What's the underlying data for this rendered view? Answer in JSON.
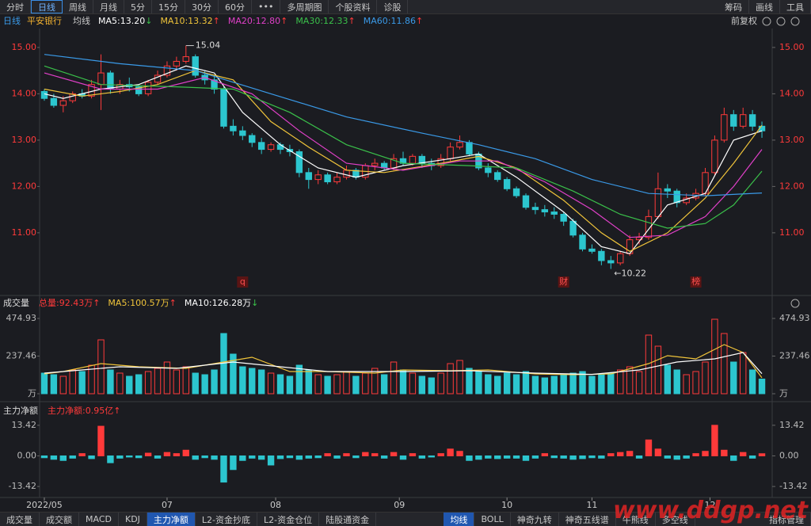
{
  "toolbar": {
    "tabs": [
      "分时",
      "日线",
      "周线",
      "月线",
      "5分",
      "15分",
      "30分",
      "60分",
      "•••",
      "多周期图",
      "个股资料",
      "诊股"
    ],
    "active": 1,
    "right": [
      "筹码",
      "画线",
      "工具"
    ]
  },
  "info_bar": {
    "period": "日线",
    "stock": "平安银行",
    "ma_label": "均线",
    "adjust": "前复权"
  },
  "chart_data": [
    {
      "type": "candlestick",
      "up_color": "#ff3a3a",
      "down_color": "#2cc6cf",
      "xlim": [
        -0.5,
        76.5
      ],
      "ylim": [
        9.75,
        15.34
      ],
      "yticks": [
        {
          "value": 15,
          "label": "15.00"
        },
        {
          "value": 14,
          "label": "14.00"
        },
        {
          "value": 13,
          "label": "13.00"
        },
        {
          "value": 12,
          "label": "12.00"
        },
        {
          "value": 11,
          "label": "11.00"
        }
      ],
      "ohlc": [
        [
          14.05,
          14.1,
          13.85,
          13.9
        ],
        [
          13.9,
          14.0,
          13.7,
          13.75
        ],
        [
          13.75,
          13.95,
          13.6,
          13.85
        ],
        [
          13.85,
          14.05,
          13.8,
          14.0
        ],
        [
          14.0,
          14.1,
          13.9,
          13.95
        ],
        [
          13.95,
          14.3,
          13.9,
          14.2
        ],
        [
          14.2,
          14.85,
          13.65,
          14.45
        ],
        [
          14.45,
          14.5,
          14.0,
          14.1
        ],
        [
          14.1,
          14.3,
          14.0,
          14.2
        ],
        [
          14.2,
          14.35,
          14.05,
          14.15
        ],
        [
          14.15,
          14.2,
          13.95,
          14.0
        ],
        [
          14.0,
          14.3,
          13.95,
          14.25
        ],
        [
          14.25,
          14.5,
          14.2,
          14.4
        ],
        [
          14.4,
          14.7,
          14.35,
          14.6
        ],
        [
          14.6,
          14.8,
          14.5,
          14.7
        ],
        [
          14.7,
          15.04,
          14.65,
          14.8
        ],
        [
          14.8,
          14.85,
          14.35,
          14.4
        ],
        [
          14.4,
          14.5,
          14.2,
          14.3
        ],
        [
          14.3,
          14.4,
          14.0,
          14.1
        ],
        [
          14.1,
          14.15,
          13.25,
          13.3
        ],
        [
          13.3,
          13.45,
          13.1,
          13.2
        ],
        [
          13.2,
          13.3,
          13.0,
          13.1
        ],
        [
          13.1,
          13.15,
          12.85,
          12.95
        ],
        [
          12.95,
          13.05,
          12.7,
          12.8
        ],
        [
          12.8,
          12.95,
          12.75,
          12.9
        ],
        [
          12.9,
          12.95,
          12.7,
          12.8
        ],
        [
          12.8,
          12.9,
          12.65,
          12.75
        ],
        [
          12.75,
          12.8,
          12.2,
          12.3
        ],
        [
          12.3,
          12.4,
          11.95,
          12.15
        ],
        [
          12.15,
          12.35,
          12.05,
          12.25
        ],
        [
          12.25,
          12.3,
          12.05,
          12.1
        ],
        [
          12.1,
          12.3,
          12.05,
          12.2
        ],
        [
          12.2,
          12.45,
          12.15,
          12.35
        ],
        [
          12.35,
          12.4,
          12.15,
          12.2
        ],
        [
          12.2,
          12.5,
          12.15,
          12.45
        ],
        [
          12.45,
          12.6,
          12.35,
          12.5
        ],
        [
          12.5,
          12.55,
          12.35,
          12.4
        ],
        [
          12.4,
          12.7,
          12.35,
          12.6
        ],
        [
          12.6,
          12.75,
          12.45,
          12.5
        ],
        [
          12.5,
          12.7,
          12.45,
          12.65
        ],
        [
          12.65,
          12.7,
          12.4,
          12.5
        ],
        [
          12.5,
          12.6,
          12.35,
          12.45
        ],
        [
          12.45,
          12.7,
          12.4,
          12.6
        ],
        [
          12.6,
          12.95,
          12.55,
          12.85
        ],
        [
          12.85,
          13.1,
          12.8,
          12.95
        ],
        [
          12.95,
          13.0,
          12.65,
          12.7
        ],
        [
          12.7,
          12.75,
          12.35,
          12.4
        ],
        [
          12.4,
          12.5,
          12.2,
          12.3
        ],
        [
          12.3,
          12.35,
          12.1,
          12.15
        ],
        [
          12.15,
          12.2,
          11.9,
          11.95
        ],
        [
          11.95,
          12.0,
          11.75,
          11.8
        ],
        [
          11.8,
          11.85,
          11.5,
          11.55
        ],
        [
          11.55,
          11.65,
          11.4,
          11.5
        ],
        [
          11.5,
          11.6,
          11.35,
          11.45
        ],
        [
          11.45,
          11.55,
          11.3,
          11.4
        ],
        [
          11.4,
          11.45,
          11.15,
          11.25
        ],
        [
          11.25,
          11.3,
          10.9,
          10.95
        ],
        [
          10.95,
          11.0,
          10.6,
          10.65
        ],
        [
          10.65,
          10.75,
          10.55,
          10.6
        ],
        [
          10.6,
          10.65,
          10.3,
          10.4
        ],
        [
          10.4,
          10.5,
          10.22,
          10.35
        ],
        [
          10.35,
          10.6,
          10.3,
          10.55
        ],
        [
          10.55,
          10.95,
          10.5,
          10.85
        ],
        [
          10.85,
          11.0,
          10.75,
          10.9
        ],
        [
          10.9,
          11.5,
          10.85,
          11.35
        ],
        [
          11.35,
          12.3,
          11.3,
          11.95
        ],
        [
          11.95,
          12.05,
          11.75,
          11.9
        ],
        [
          11.9,
          11.95,
          11.55,
          11.65
        ],
        [
          11.65,
          11.85,
          11.6,
          11.75
        ],
        [
          11.75,
          11.95,
          11.7,
          11.85
        ],
        [
          11.85,
          12.4,
          11.8,
          12.3
        ],
        [
          12.3,
          13.1,
          12.25,
          13.0
        ],
        [
          13.0,
          13.7,
          12.95,
          13.55
        ],
        [
          13.55,
          13.65,
          13.2,
          13.3
        ],
        [
          13.3,
          13.7,
          13.25,
          13.55
        ],
        [
          13.55,
          13.65,
          13.2,
          13.3
        ],
        [
          13.3,
          13.4,
          13.05,
          13.2
        ]
      ],
      "series": [
        {
          "name": "MA5:13.20",
          "arrow": "↓",
          "arrow_color": "#3ac04a",
          "color": "#ffffff",
          "x": [
            0,
            2,
            6,
            10,
            15,
            18,
            21,
            25,
            29,
            33,
            38,
            43,
            46,
            50,
            55,
            59,
            62,
            66,
            70,
            73,
            76
          ],
          "values": [
            14.0,
            13.9,
            14.1,
            14.2,
            14.6,
            14.45,
            13.6,
            12.9,
            12.4,
            12.2,
            12.45,
            12.6,
            12.7,
            12.2,
            11.45,
            10.7,
            10.55,
            11.6,
            11.85,
            13.0,
            13.2
          ]
        },
        {
          "name": "MA10:13.32",
          "arrow": "↑",
          "arrow_color": "#ff3a3a",
          "color": "#f0c43a",
          "x": [
            0,
            4,
            8,
            12,
            16,
            20,
            24,
            28,
            32,
            36,
            42,
            46,
            50,
            55,
            59,
            62,
            66,
            70,
            73,
            76
          ],
          "values": [
            14.1,
            13.95,
            14.05,
            14.2,
            14.5,
            14.3,
            13.4,
            12.85,
            12.35,
            12.3,
            12.5,
            12.65,
            12.4,
            11.7,
            11.0,
            10.6,
            11.0,
            11.75,
            12.5,
            13.32
          ]
        },
        {
          "name": "MA20:12.80",
          "arrow": "↑",
          "arrow_color": "#ff3a3a",
          "color": "#e040c8",
          "x": [
            0,
            6,
            12,
            17,
            22,
            27,
            32,
            38,
            44,
            48,
            53,
            58,
            62,
            66,
            70,
            73,
            76
          ],
          "values": [
            14.45,
            14.1,
            14.1,
            14.35,
            14.0,
            13.2,
            12.5,
            12.35,
            12.55,
            12.55,
            12.1,
            11.5,
            10.9,
            10.95,
            11.35,
            12.0,
            12.8
          ]
        },
        {
          "name": "MA30:12.33",
          "arrow": "↑",
          "arrow_color": "#ff3a3a",
          "color": "#3ac04a",
          "x": [
            0,
            6,
            14,
            20,
            26,
            32,
            38,
            45,
            50,
            56,
            61,
            66,
            70,
            73,
            76
          ],
          "values": [
            14.6,
            14.2,
            14.15,
            14.1,
            13.6,
            12.9,
            12.5,
            12.45,
            12.4,
            11.9,
            11.4,
            11.1,
            11.2,
            11.6,
            12.33
          ]
        },
        {
          "name": "MA60:11.86",
          "arrow": "↑",
          "arrow_color": "#ff3a3a",
          "color": "#3a9ae8",
          "x": [
            0,
            8,
            16,
            24,
            32,
            40,
            46,
            52,
            58,
            64,
            70,
            76
          ],
          "values": [
            14.85,
            14.65,
            14.5,
            14.0,
            13.5,
            13.15,
            12.9,
            12.6,
            12.15,
            11.85,
            11.8,
            11.86
          ]
        }
      ],
      "max_label": {
        "value": 15.04,
        "x": 15
      },
      "min_label": {
        "value": 10.22,
        "label": "←10.22",
        "x": 60
      },
      "events": [
        {
          "label": "q",
          "x": 21
        },
        {
          "label": "财",
          "x": 55
        },
        {
          "label": "榜",
          "x": 69
        }
      ]
    },
    {
      "type": "bar",
      "title": "成交量",
      "color_by": "candle",
      "up_color": "#ff3a3a",
      "down_color": "#2cc6cf",
      "xlim": [
        -0.5,
        76.5
      ],
      "ylim": [
        0,
        515
      ],
      "yticks": [
        474.93,
        237.46,
        {
          "value": 0,
          "label": "万"
        }
      ],
      "series": [
        {
          "name": "总量:92.43万",
          "arrow": "↑",
          "arrow_color": "#ff3a3a",
          "color": "#ff3a3a",
          "values": [
            130,
            120,
            110,
            150,
            140,
            180,
            340,
            150,
            130,
            110,
            120,
            140,
            160,
            200,
            150,
            170,
            130,
            120,
            150,
            380,
            250,
            170,
            160,
            150,
            130,
            120,
            110,
            180,
            150,
            120,
            110,
            120,
            140,
            110,
            130,
            160,
            120,
            200,
            150,
            130,
            110,
            100,
            130,
            190,
            210,
            160,
            140,
            120,
            110,
            130,
            120,
            140,
            110,
            100,
            110,
            120,
            130,
            140,
            110,
            120,
            130,
            150,
            170,
            140,
            370,
            300,
            180,
            150,
            120,
            140,
            200,
            470,
            380,
            200,
            260,
            150,
            92.43
          ]
        },
        {
          "name": "MA5:100.57万",
          "arrow": "↑",
          "arrow_color": "#ff3a3a",
          "color": "#f0c43a",
          "x": [
            0,
            2,
            6,
            10,
            15,
            19,
            22,
            26,
            30,
            35,
            38,
            43,
            47,
            52,
            56,
            60,
            64,
            66,
            69,
            72,
            74,
            76
          ],
          "values": [
            125,
            140,
            190,
            170,
            160,
            200,
            230,
            140,
            140,
            130,
            150,
            145,
            150,
            125,
            120,
            125,
            190,
            240,
            220,
            310,
            260,
            100.57
          ]
        },
        {
          "name": "MA10:126.28万",
          "arrow": "↓",
          "arrow_color": "#3ac04a",
          "color": "#ffffff",
          "x": [
            0,
            4,
            8,
            14,
            20,
            25,
            30,
            38,
            45,
            52,
            58,
            63,
            67,
            71,
            74,
            76
          ],
          "values": [
            130,
            150,
            170,
            160,
            200,
            170,
            140,
            140,
            145,
            130,
            122,
            150,
            200,
            220,
            260,
            126.28
          ]
        }
      ]
    },
    {
      "type": "bar",
      "title": "主力净额",
      "color_by": "sign",
      "up_color": "#ff3a3a",
      "down_color": "#2cc6cf",
      "xlim": [
        -0.5,
        76.5
      ],
      "ylim": [
        -17.2,
        15.8
      ],
      "yticks": [
        13.42,
        {
          "value": 0,
          "label": "0.00"
        },
        -13.42
      ],
      "xticks": [
        {
          "value": 0,
          "label": "2022/05"
        },
        {
          "value": 13,
          "label": "07"
        },
        {
          "value": 24.5,
          "label": "08"
        },
        {
          "value": 37.6,
          "label": "09"
        },
        {
          "value": 49,
          "label": "10"
        },
        {
          "value": 58,
          "label": "11"
        },
        {
          "value": 70.5,
          "label": "12"
        }
      ],
      "series": [
        {
          "name": "主力净额:0.95亿",
          "arrow": "↑",
          "arrow_color": "#ff3a3a",
          "color": "#ff3a3a",
          "values": [
            -0.8,
            -1.5,
            -2.0,
            -1.0,
            1.0,
            -1.2,
            13.0,
            -3.0,
            -1.0,
            -0.5,
            -0.8,
            1.2,
            -1.0,
            1.5,
            1.0,
            2.5,
            -1.5,
            -0.8,
            -1.5,
            -11.5,
            -6.0,
            -2.0,
            -1.0,
            -1.5,
            -4.0,
            -1.2,
            -0.8,
            -1.5,
            -1.0,
            -0.8,
            1.0,
            -1.0,
            1.0,
            -0.8,
            1.5,
            1.0,
            -1.0,
            1.5,
            -1.5,
            1.0,
            -1.0,
            -0.5,
            1.0,
            3.0,
            2.0,
            -2.0,
            -1.5,
            -1.0,
            -1.2,
            -1.0,
            -1.0,
            -2.0,
            -1.0,
            1.0,
            -0.8,
            -1.0,
            -1.5,
            -1.2,
            -0.8,
            -1.0,
            1.0,
            1.5,
            2.0,
            -1.0,
            7.0,
            3.0,
            -1.0,
            -1.5,
            -1.0,
            1.0,
            2.0,
            13.42,
            2.5,
            -2.0,
            1.5,
            -1.0,
            0.95
          ]
        }
      ]
    }
  ],
  "bottom_tabs": {
    "left": [
      "成交量",
      "成交额",
      "MACD",
      "KDJ",
      "主力净额",
      "L2-资金抄底",
      "L2-资金仓位",
      "陆股通资金"
    ],
    "left_active": 4,
    "right": [
      "均线",
      "BOLL",
      "神奇九转",
      "神奇五线谱",
      "牛熊线",
      "多空线"
    ],
    "right_active": 0,
    "manage": "指标管理"
  },
  "watermark": "www.ddgp.net"
}
